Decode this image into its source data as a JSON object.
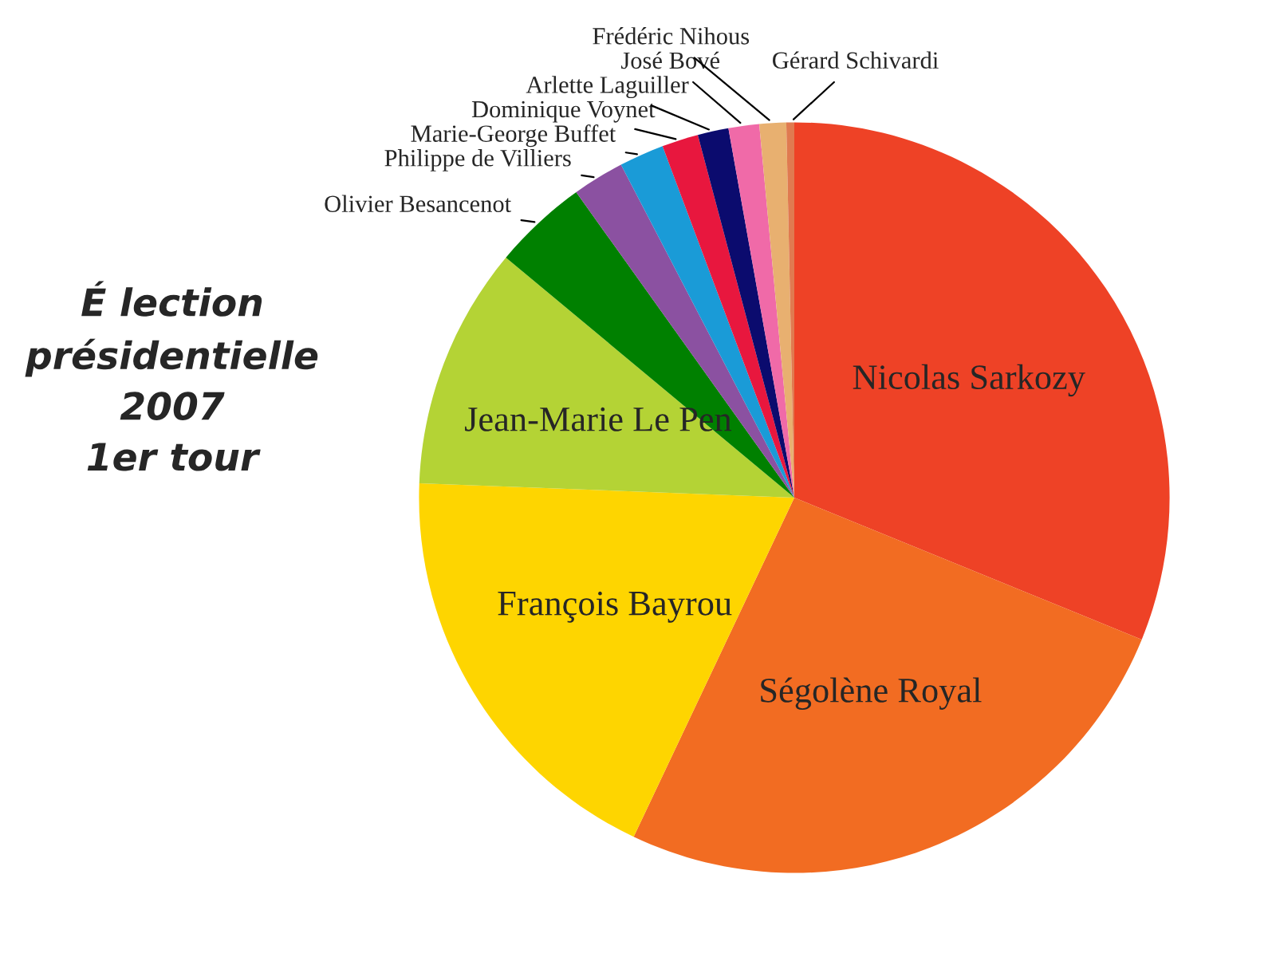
{
  "chart_data": {
    "type": "pie",
    "title": "É lection\nprésidentielle\n2007\n1er tour",
    "categories": [
      "Nicolas Sarkozy",
      "Ségolène Royal",
      "François Bayrou",
      "Jean-Marie Le Pen",
      "Olivier Besancenot",
      "Philippe de Villiers",
      "Marie-George Buffet",
      "Dominique Voynet",
      "Arlette Laguiller",
      "José Bové",
      "Frédéric Nihous",
      "Gérard Schivardi"
    ],
    "values": [
      31.17,
      25.87,
      18.57,
      10.44,
      4.08,
      2.23,
      1.93,
      1.57,
      1.33,
      1.32,
      1.15,
      0.34
    ],
    "colors": [
      "#ee4226",
      "#f26c22",
      "#fed500",
      "#b4d335",
      "#008000",
      "#8b51a1",
      "#1a9bd7",
      "#e8173e",
      "#0b0b6e",
      "#f06aa8",
      "#e8b070",
      "#e07a50"
    ]
  }
}
